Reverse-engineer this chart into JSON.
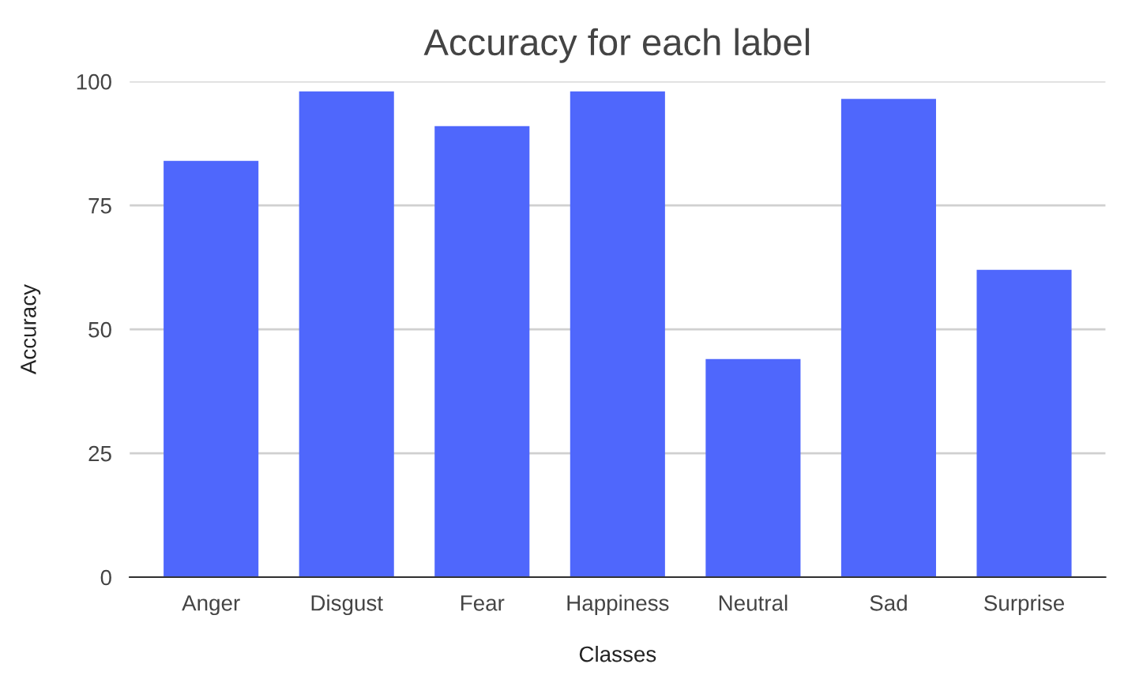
{
  "chart_data": {
    "type": "bar",
    "title": "Accuracy for each label",
    "xlabel": "Classes",
    "ylabel": "Accuracy",
    "categories": [
      "Anger",
      "Disgust",
      "Fear",
      "Happiness",
      "Neutral",
      "Sad",
      "Surprise"
    ],
    "values": [
      84,
      98,
      91,
      98,
      44,
      96.5,
      62
    ],
    "color": "#4f67fc",
    "ylim": [
      0,
      100
    ],
    "yticks": [
      0,
      25,
      50,
      75,
      100
    ],
    "grid": "y"
  }
}
